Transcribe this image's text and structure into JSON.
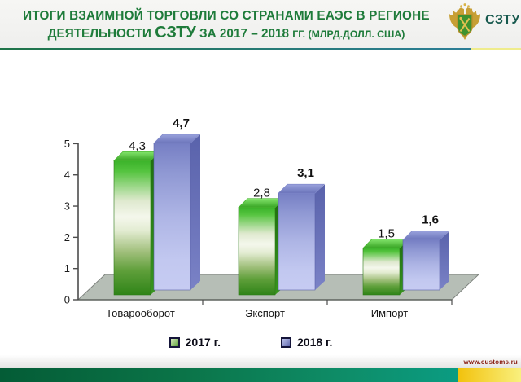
{
  "header": {
    "title_line1": "ИТОГИ ВЗАИМНОЙ ТОРГОВЛИ СО СТРАНАМИ ЕАЭС В РЕГИОНЕ",
    "title_line2": {
      "part1": "ДЕЯТЕЛЬНОСТИ ",
      "part2": "СЗТУ",
      "part3": " ЗА 2017 – 2018 ",
      "part4": "ГГ. (МЛРД.ДОЛЛ. США)"
    },
    "org_label": "СЗТУ",
    "logo_icon": "customs-eagle-emblem",
    "title_color": "#1e7b3a"
  },
  "chart_data": {
    "type": "bar",
    "subtype": "3d-clustered-column",
    "title": "ИТОГИ ВЗАИМНОЙ ТОРГОВЛИ СО СТРАНАМИ ЕАЭС В РЕГИОНЕ ДЕЯТЕЛЬНОСТИ СЗТУ ЗА 2017 – 2018 ГГ. (МЛРД.ДОЛЛ. США)",
    "units": "млрд долл. США",
    "categories": [
      "Товарооборот",
      "Экспорт",
      "Импорт"
    ],
    "series": [
      {
        "name": "2017 г.",
        "color": "#3fae2a",
        "values": [
          4.3,
          2.8,
          1.5
        ],
        "value_labels": [
          "4,3",
          "2,8",
          "1,5"
        ]
      },
      {
        "name": "2018 г.",
        "color": "#8a93d4",
        "values": [
          4.7,
          3.1,
          1.6
        ],
        "value_labels": [
          "4,7",
          "3,1",
          "1,6"
        ]
      }
    ],
    "ylim": [
      0,
      5
    ],
    "yticks": [
      "0",
      "1",
      "2",
      "3",
      "4",
      "5"
    ],
    "grid": false,
    "legend_position": "bottom",
    "floor_color": "#b6beb6"
  },
  "footer": {
    "website": "www.customs.ru",
    "bar_green": "#0b7448",
    "bar_yellow": "#f6d94a"
  }
}
